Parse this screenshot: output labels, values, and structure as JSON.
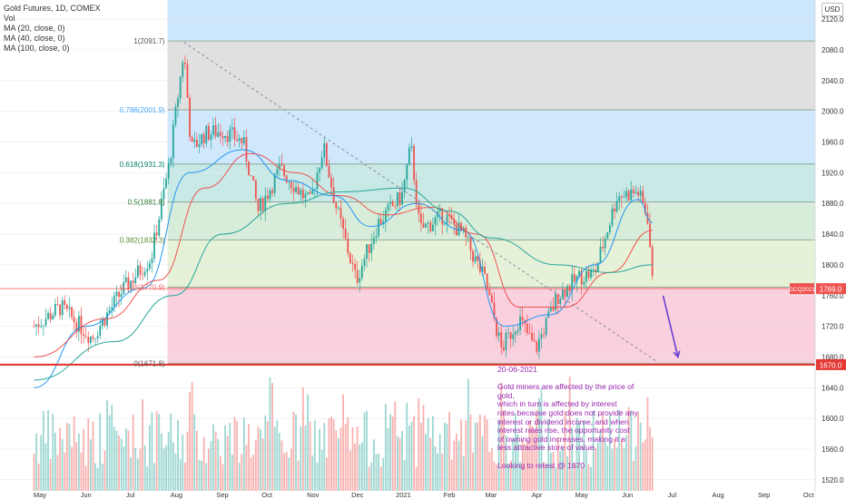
{
  "legend": {
    "symbol": "Gold Futures, 1D, COMEX",
    "vol": "Vol",
    "ma20": "MA (20, close, 0)",
    "ma40": "MA (40, close, 0)",
    "ma100": "MA (100, close, 0)"
  },
  "currency_label": "USD",
  "annotation": {
    "date": "20-06-2021",
    "lines": [
      "Gold miners are affected by the price of",
      "gold,",
      "which in turn is affected by interest",
      "rates because gold does not provide any",
      "interest or dividend income, and when",
      "interest rates rise, the opportunity cost",
      "of owning gold increases, making it a",
      "less attractive store of value."
    ],
    "target": "Looking to retest @ 1670"
  },
  "colors": {
    "up": "#26a69a",
    "down": "#ef5350",
    "ma_red": "#ef5350",
    "ma_teal": "#26a69a",
    "ma_blue": "#2196f3",
    "fib_1": "#d3d3d3",
    "fib_786": "#bbdefb",
    "fib_618": "#b2dfdb",
    "fib_5": "#c8e6c9",
    "fib_382": "#dcedc8",
    "fib_236": "#f8bbd0",
    "fib_0": "#ffcdd2",
    "annotation": "#9c27b0",
    "arrow": "#6a3fd1",
    "price_tag": "#ef5350",
    "support_line": "#e53935"
  },
  "chart_data": {
    "type": "candlestick",
    "title": "Gold Futures, 1D, COMEX",
    "ylim": [
      1495,
      2145
    ],
    "y_ticks": [
      1520.0,
      1560.0,
      1600.0,
      1640.0,
      1680.0,
      1720.0,
      1760.0,
      1800.0,
      1840.0,
      1880.0,
      1920.0,
      1960.0,
      2000.0,
      2040.0,
      2080.0,
      2120.0
    ],
    "x_labels": [
      "May",
      "Jun",
      "Jul",
      "Aug",
      "Sep",
      "Oct",
      "Nov",
      "Dec",
      "2021",
      "Feb",
      "Mar",
      "Apr",
      "May",
      "Jun",
      "Jul",
      "Aug",
      "Sep",
      "Oct"
    ],
    "fib_retracement": [
      {
        "level": 1,
        "label": "1(2091.7)",
        "price": 2091.7
      },
      {
        "level": 0.786,
        "label": "0.786(2001.9)",
        "price": 2001.9
      },
      {
        "level": 0.618,
        "label": "0.618(1931.3)",
        "price": 1931.3
      },
      {
        "level": 0.5,
        "label": "0.5(1881.8)",
        "price": 1881.8
      },
      {
        "level": 0.382,
        "label": "0.382(1832.3)",
        "price": 1832.3
      },
      {
        "level": 0.236,
        "label": "0.236(1770.9)",
        "price": 1770.9
      },
      {
        "level": 0,
        "label": "0(1671.8)",
        "price": 1671.8
      }
    ],
    "price_tag": {
      "label": "GCQ2021",
      "value": "1769.0"
    },
    "support": {
      "value": "1670.0"
    },
    "price_path": [
      {
        "x": "2020-04-27",
        "y": 1720
      },
      {
        "x": "2020-05-15",
        "y": 1745
      },
      {
        "x": "2020-06-05",
        "y": 1705
      },
      {
        "x": "2020-06-25",
        "y": 1765
      },
      {
        "x": "2020-07-15",
        "y": 1810
      },
      {
        "x": "2020-07-27",
        "y": 1930
      },
      {
        "x": "2020-08-06",
        "y": 2080
      },
      {
        "x": "2020-08-11",
        "y": 1950
      },
      {
        "x": "2020-08-20",
        "y": 1970
      },
      {
        "x": "2020-09-01",
        "y": 1975
      },
      {
        "x": "2020-09-15",
        "y": 1960
      },
      {
        "x": "2020-09-25",
        "y": 1870
      },
      {
        "x": "2020-10-10",
        "y": 1925
      },
      {
        "x": "2020-10-30",
        "y": 1880
      },
      {
        "x": "2020-11-08",
        "y": 1955
      },
      {
        "x": "2020-11-16",
        "y": 1880
      },
      {
        "x": "2020-11-30",
        "y": 1780
      },
      {
        "x": "2020-12-15",
        "y": 1855
      },
      {
        "x": "2020-12-31",
        "y": 1890
      },
      {
        "x": "2021-01-06",
        "y": 1955
      },
      {
        "x": "2021-01-12",
        "y": 1845
      },
      {
        "x": "2021-01-28",
        "y": 1865
      },
      {
        "x": "2021-02-10",
        "y": 1840
      },
      {
        "x": "2021-02-25",
        "y": 1780
      },
      {
        "x": "2021-03-08",
        "y": 1690
      },
      {
        "x": "2021-03-20",
        "y": 1730
      },
      {
        "x": "2021-03-31",
        "y": 1690
      },
      {
        "x": "2021-04-15",
        "y": 1760
      },
      {
        "x": "2021-04-30",
        "y": 1785
      },
      {
        "x": "2021-05-10",
        "y": 1790
      },
      {
        "x": "2021-05-25",
        "y": 1890
      },
      {
        "x": "2021-06-08",
        "y": 1895
      },
      {
        "x": "2021-06-15",
        "y": 1860
      },
      {
        "x": "2021-06-18",
        "y": 1769
      }
    ],
    "moving_averages": [
      {
        "name": "MA (20, close, 0)",
        "color": "#2196f3",
        "points": [
          {
            "x": "2020-04-27",
            "y": 1640
          },
          {
            "x": "2020-06-01",
            "y": 1720
          },
          {
            "x": "2020-07-10",
            "y": 1770
          },
          {
            "x": "2020-08-10",
            "y": 1920
          },
          {
            "x": "2020-09-15",
            "y": 1950
          },
          {
            "x": "2020-10-15",
            "y": 1910
          },
          {
            "x": "2020-11-15",
            "y": 1890
          },
          {
            "x": "2020-12-10",
            "y": 1850
          },
          {
            "x": "2021-01-10",
            "y": 1880
          },
          {
            "x": "2021-02-10",
            "y": 1845
          },
          {
            "x": "2021-03-10",
            "y": 1720
          },
          {
            "x": "2021-04-10",
            "y": 1735
          },
          {
            "x": "2021-05-10",
            "y": 1800
          },
          {
            "x": "2021-06-08",
            "y": 1885
          },
          {
            "x": "2021-06-18",
            "y": 1855
          }
        ]
      },
      {
        "name": "MA (40, close, 0)",
        "color": "#ef5350",
        "points": [
          {
            "x": "2020-04-27",
            "y": 1680
          },
          {
            "x": "2020-06-15",
            "y": 1730
          },
          {
            "x": "2020-07-20",
            "y": 1780
          },
          {
            "x": "2020-08-20",
            "y": 1900
          },
          {
            "x": "2020-09-20",
            "y": 1945
          },
          {
            "x": "2020-10-20",
            "y": 1920
          },
          {
            "x": "2020-11-20",
            "y": 1890
          },
          {
            "x": "2020-12-20",
            "y": 1865
          },
          {
            "x": "2021-01-20",
            "y": 1875
          },
          {
            "x": "2021-02-20",
            "y": 1840
          },
          {
            "x": "2021-03-20",
            "y": 1745
          },
          {
            "x": "2021-04-20",
            "y": 1745
          },
          {
            "x": "2021-05-20",
            "y": 1790
          },
          {
            "x": "2021-06-18",
            "y": 1845
          }
        ]
      },
      {
        "name": "MA (100, close, 0)",
        "color": "#26a69a",
        "points": [
          {
            "x": "2020-04-27",
            "y": 1650
          },
          {
            "x": "2020-06-20",
            "y": 1700
          },
          {
            "x": "2020-07-30",
            "y": 1760
          },
          {
            "x": "2020-09-01",
            "y": 1840
          },
          {
            "x": "2020-10-15",
            "y": 1880
          },
          {
            "x": "2020-11-20",
            "y": 1895
          },
          {
            "x": "2021-01-01",
            "y": 1900
          },
          {
            "x": "2021-02-01",
            "y": 1870
          },
          {
            "x": "2021-03-01",
            "y": 1835
          },
          {
            "x": "2021-04-15",
            "y": 1800
          },
          {
            "x": "2021-05-20",
            "y": 1790
          },
          {
            "x": "2021-06-18",
            "y": 1800
          }
        ]
      }
    ],
    "trendline": [
      {
        "x": "2020-08-06",
        "y": 2090
      },
      {
        "x": "2021-06-20",
        "y": 1675
      }
    ],
    "projection_arrow": [
      {
        "x": "2021-06-25",
        "y": 1760
      },
      {
        "x": "2021-07-05",
        "y": 1680
      }
    ]
  }
}
